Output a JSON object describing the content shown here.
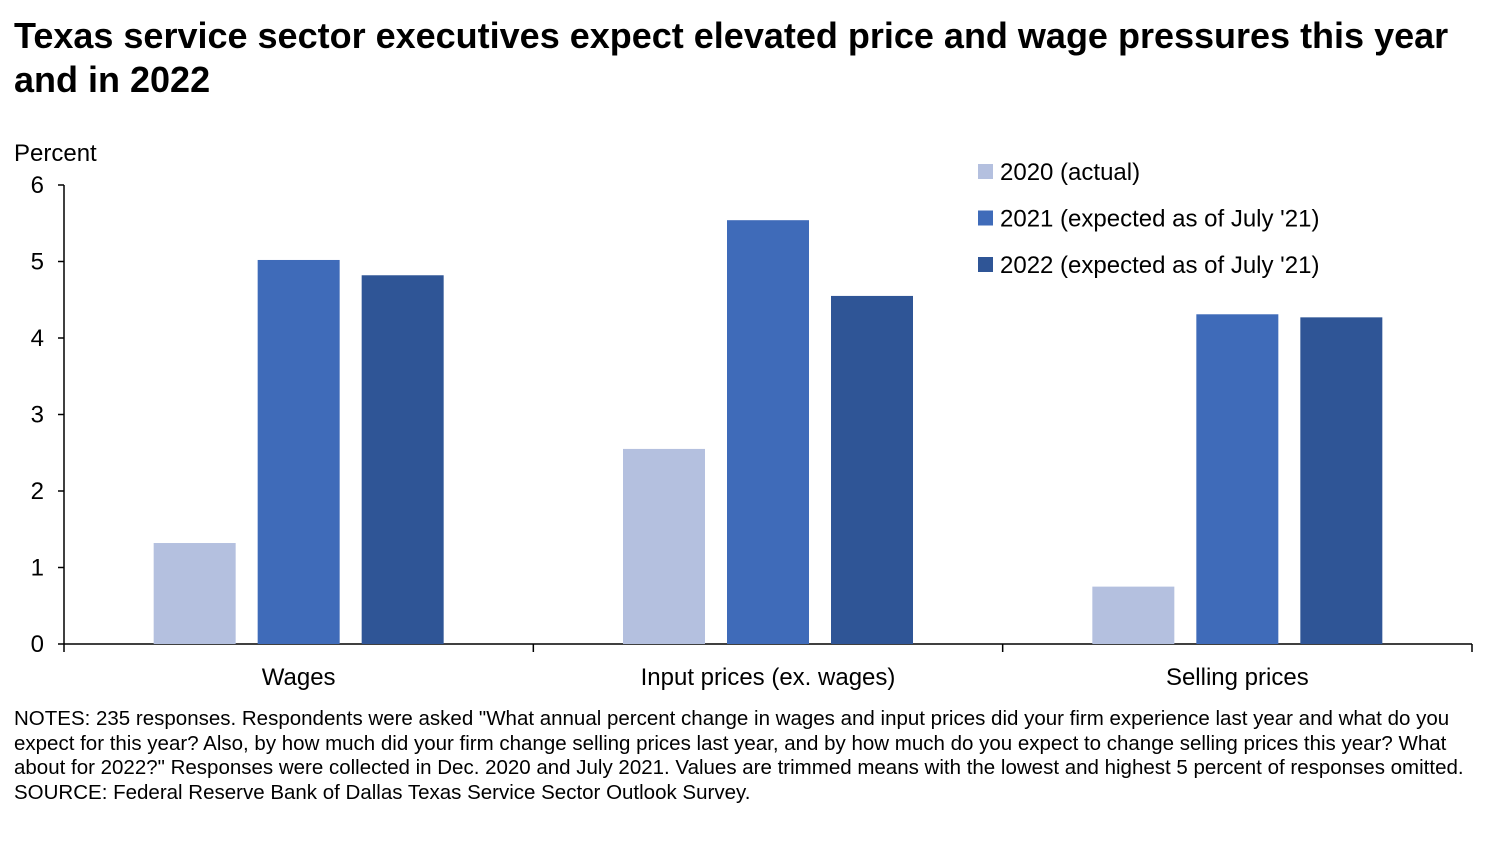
{
  "title": "Texas service sector executives expect elevated price and wage pressures this year and in 2022",
  "notes": "NOTES: 235 responses. Respondents were asked \"What annual percent change in wages and input prices did your firm experience last year and what do you expect for this year? Also, by how much did your firm change selling prices last year, and by how much do you expect to change selling prices this year? What about for 2022?\" Responses were collected in Dec. 2020 and July 2021. Values are trimmed means with the lowest and highest 5 percent of responses omitted.",
  "source": "SOURCE: Federal Reserve Bank of Dallas Texas Service Sector Outlook Survey.",
  "chart_data": {
    "type": "bar",
    "ylabel": "Percent",
    "ylim": [
      0,
      6
    ],
    "yticks": [
      0,
      1,
      2,
      3,
      4,
      5,
      6
    ],
    "categories": [
      "Wages",
      "Input prices (ex. wages)",
      "Selling prices"
    ],
    "series": [
      {
        "name": "2020 (actual)",
        "color": "#b4c0df",
        "values": [
          1.32,
          2.55,
          0.75
        ]
      },
      {
        "name": "2021 (expected as of July '21)",
        "color": "#3f6bb9",
        "values": [
          5.02,
          5.54,
          4.31
        ]
      },
      {
        "name": "2022 (expected as of July '21)",
        "color": "#2f5596",
        "values": [
          4.82,
          4.55,
          4.27
        ]
      }
    ],
    "legend_position": "top-right",
    "grid": false
  }
}
